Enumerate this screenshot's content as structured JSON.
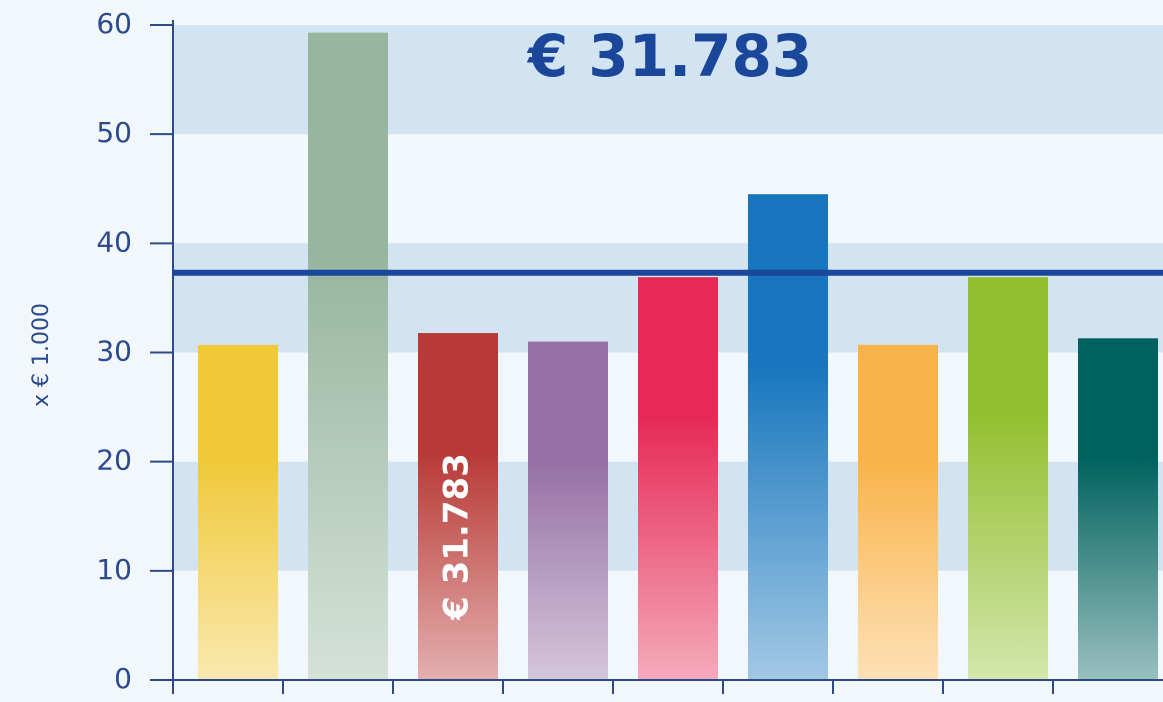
{
  "chart_data": {
    "type": "bar",
    "title": "€ 31.783",
    "y_label": "x € 1.000",
    "categories": [
      null,
      null,
      null,
      null,
      null,
      null,
      null,
      null,
      null
    ],
    "values": [
      30.7,
      59.3,
      31.783,
      31.0,
      36.9,
      44.5,
      30.7,
      36.9,
      31.3
    ],
    "value_labels": [
      null,
      null,
      "€ 31.783",
      null,
      null,
      null,
      null,
      null,
      null
    ],
    "colors": [
      "#f0c93a",
      "#97b6a0",
      "#b83a36",
      "#9670a4",
      "#e62a55",
      "#1776bd",
      "#fab34b",
      "#93c031",
      "#00625e"
    ],
    "reference_line": {
      "value": 37.3,
      "color": "#1a479a"
    },
    "ylim": [
      0,
      60
    ],
    "yticks": [
      0,
      10,
      20,
      30,
      40,
      50,
      60
    ],
    "grid": true
  }
}
